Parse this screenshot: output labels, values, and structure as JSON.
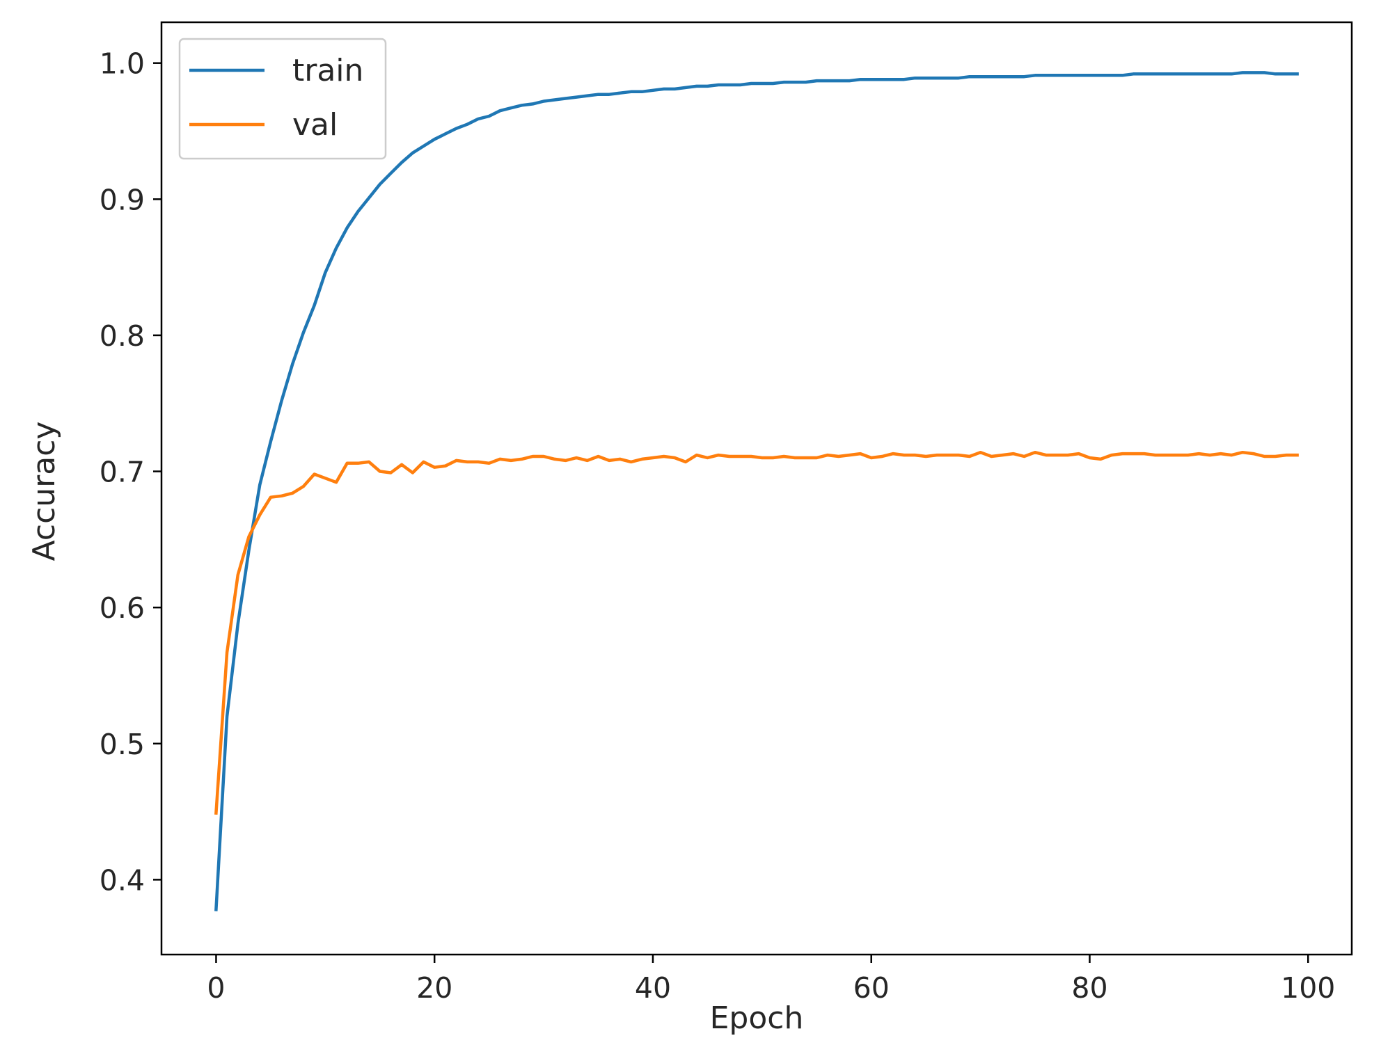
{
  "chart_data": {
    "type": "line",
    "title": "",
    "xlabel": "Epoch",
    "ylabel": "Accuracy",
    "xlim": [
      -5,
      104
    ],
    "ylim": [
      0.345,
      1.03
    ],
    "xticks": [
      0,
      20,
      40,
      60,
      80,
      100
    ],
    "yticks": [
      0.4,
      0.5,
      0.6,
      0.7,
      0.8,
      0.9,
      1.0
    ],
    "xtick_labels": [
      "0",
      "20",
      "40",
      "60",
      "80",
      "100"
    ],
    "ytick_labels": [
      "0.4",
      "0.5",
      "0.6",
      "0.7",
      "0.8",
      "0.9",
      "1.0"
    ],
    "grid": false,
    "legend_position": "top-left",
    "series": [
      {
        "name": "train",
        "color": "#1f77b4",
        "x": [
          0,
          1,
          2,
          3,
          4,
          5,
          6,
          7,
          8,
          9,
          10,
          11,
          12,
          13,
          14,
          15,
          16,
          17,
          18,
          19,
          20,
          21,
          22,
          23,
          24,
          25,
          26,
          27,
          28,
          29,
          30,
          31,
          32,
          33,
          34,
          35,
          36,
          37,
          38,
          39,
          40,
          41,
          42,
          43,
          44,
          45,
          46,
          47,
          48,
          49,
          50,
          51,
          52,
          53,
          54,
          55,
          56,
          57,
          58,
          59,
          60,
          61,
          62,
          63,
          64,
          65,
          66,
          67,
          68,
          69,
          70,
          71,
          72,
          73,
          74,
          75,
          76,
          77,
          78,
          79,
          80,
          81,
          82,
          83,
          84,
          85,
          86,
          87,
          88,
          89,
          90,
          91,
          92,
          93,
          94,
          95,
          96,
          97,
          98,
          99
        ],
        "y": [
          0.378,
          0.52,
          0.588,
          0.642,
          0.69,
          0.722,
          0.752,
          0.779,
          0.802,
          0.822,
          0.846,
          0.864,
          0.879,
          0.891,
          0.901,
          0.911,
          0.919,
          0.927,
          0.934,
          0.939,
          0.944,
          0.948,
          0.952,
          0.955,
          0.959,
          0.961,
          0.965,
          0.967,
          0.969,
          0.97,
          0.972,
          0.973,
          0.974,
          0.975,
          0.976,
          0.977,
          0.977,
          0.978,
          0.979,
          0.979,
          0.98,
          0.981,
          0.981,
          0.982,
          0.983,
          0.983,
          0.984,
          0.984,
          0.984,
          0.985,
          0.985,
          0.985,
          0.986,
          0.986,
          0.986,
          0.987,
          0.987,
          0.987,
          0.987,
          0.988,
          0.988,
          0.988,
          0.988,
          0.988,
          0.989,
          0.989,
          0.989,
          0.989,
          0.989,
          0.99,
          0.99,
          0.99,
          0.99,
          0.99,
          0.99,
          0.991,
          0.991,
          0.991,
          0.991,
          0.991,
          0.991,
          0.991,
          0.991,
          0.991,
          0.992,
          0.992,
          0.992,
          0.992,
          0.992,
          0.992,
          0.992,
          0.992,
          0.992,
          0.992,
          0.993,
          0.993,
          0.993,
          0.992,
          0.992,
          0.992
        ]
      },
      {
        "name": "val",
        "color": "#ff7f0e",
        "x": [
          0,
          1,
          2,
          3,
          4,
          5,
          6,
          7,
          8,
          9,
          10,
          11,
          12,
          13,
          14,
          15,
          16,
          17,
          18,
          19,
          20,
          21,
          22,
          23,
          24,
          25,
          26,
          27,
          28,
          29,
          30,
          31,
          32,
          33,
          34,
          35,
          36,
          37,
          38,
          39,
          40,
          41,
          42,
          43,
          44,
          45,
          46,
          47,
          48,
          49,
          50,
          51,
          52,
          53,
          54,
          55,
          56,
          57,
          58,
          59,
          60,
          61,
          62,
          63,
          64,
          65,
          66,
          67,
          68,
          69,
          70,
          71,
          72,
          73,
          74,
          75,
          76,
          77,
          78,
          79,
          80,
          81,
          82,
          83,
          84,
          85,
          86,
          87,
          88,
          89,
          90,
          91,
          92,
          93,
          94,
          95,
          96,
          97,
          98,
          99
        ],
        "y": [
          0.449,
          0.567,
          0.624,
          0.652,
          0.668,
          0.681,
          0.682,
          0.684,
          0.689,
          0.698,
          0.695,
          0.692,
          0.706,
          0.706,
          0.707,
          0.7,
          0.699,
          0.705,
          0.699,
          0.707,
          0.703,
          0.704,
          0.708,
          0.707,
          0.707,
          0.706,
          0.709,
          0.708,
          0.709,
          0.711,
          0.711,
          0.709,
          0.708,
          0.71,
          0.708,
          0.711,
          0.708,
          0.709,
          0.707,
          0.709,
          0.71,
          0.711,
          0.71,
          0.707,
          0.712,
          0.71,
          0.712,
          0.711,
          0.711,
          0.711,
          0.71,
          0.71,
          0.711,
          0.71,
          0.71,
          0.71,
          0.712,
          0.711,
          0.712,
          0.713,
          0.71,
          0.711,
          0.713,
          0.712,
          0.712,
          0.711,
          0.712,
          0.712,
          0.712,
          0.711,
          0.714,
          0.711,
          0.712,
          0.713,
          0.711,
          0.714,
          0.712,
          0.712,
          0.712,
          0.713,
          0.71,
          0.709,
          0.712,
          0.713,
          0.713,
          0.713,
          0.712,
          0.712,
          0.712,
          0.712,
          0.713,
          0.712,
          0.713,
          0.712,
          0.714,
          0.713,
          0.711,
          0.711,
          0.712,
          0.712
        ]
      }
    ]
  }
}
